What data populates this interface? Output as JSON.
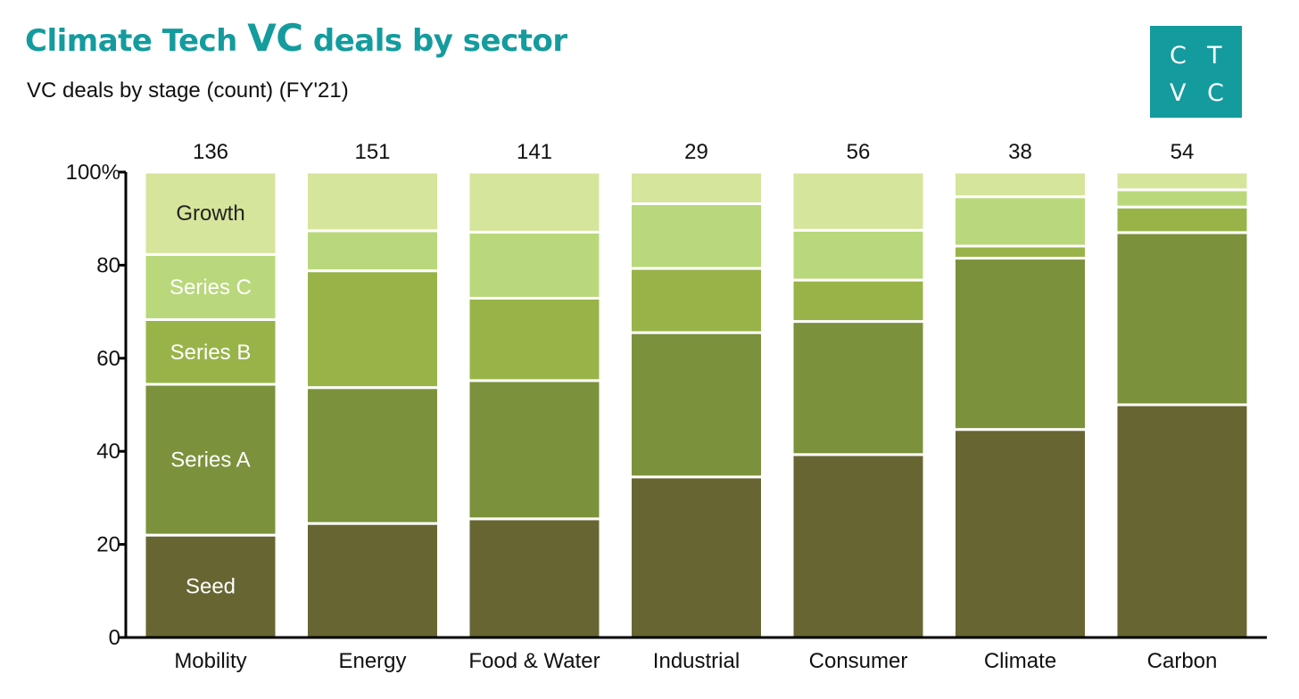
{
  "title_pre": "Climate Tech ",
  "title_vc": "VC",
  "title_post": " deals by sector",
  "subtitle": "VC deals by stage (count) (FY'21)",
  "logo_letters": [
    "C",
    "T",
    "V",
    "C"
  ],
  "colors": {
    "accent": "#149b9e",
    "stack": [
      "#676633",
      "#7b913b",
      "#98b449",
      "#b9d87b",
      "#d5e59b"
    ]
  },
  "chart_data": {
    "type": "bar",
    "stacked": true,
    "normalized": true,
    "categories": [
      "Mobility",
      "Energy",
      "Food & Water",
      "Industrial",
      "Consumer",
      "Climate",
      "Carbon"
    ],
    "totals": [
      "136",
      "151",
      "141",
      "29",
      "56",
      "38",
      "54"
    ],
    "series": [
      {
        "name": "Seed",
        "values": [
          22,
          24.5,
          25.5,
          34.5,
          39.3,
          44.7,
          50
        ]
      },
      {
        "name": "Series A",
        "values": [
          32.4,
          29.2,
          29.7,
          31,
          28.6,
          36.8,
          37
        ]
      },
      {
        "name": "Series B",
        "values": [
          13.9,
          25.1,
          17.7,
          13.8,
          8.9,
          2.6,
          5.5
        ]
      },
      {
        "name": "Series C",
        "values": [
          14.0,
          8.6,
          14.2,
          13.9,
          10.7,
          10.6,
          3.7
        ]
      },
      {
        "name": "Growth",
        "values": [
          17.7,
          12.6,
          12.9,
          6.8,
          12.5,
          5.3,
          3.8
        ]
      }
    ],
    "y_ticks": [
      "0",
      "20",
      "40",
      "60",
      "80",
      "100%"
    ],
    "y_tick_values": [
      0,
      20,
      40,
      60,
      80,
      100
    ],
    "ylim": [
      0,
      100
    ],
    "label_category": "Mobility",
    "xlabel": "",
    "ylabel": "",
    "legend": "inline labels on first bar"
  }
}
